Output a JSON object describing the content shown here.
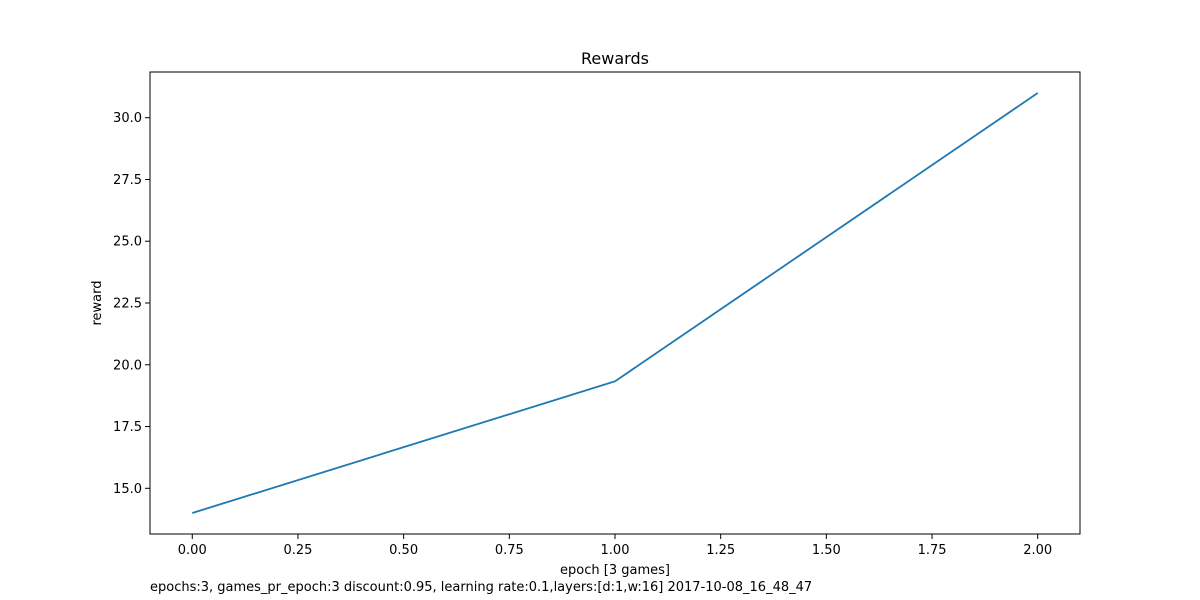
{
  "chart_data": {
    "type": "line",
    "title": "Rewards",
    "xlabel": "epoch [3 games]",
    "ylabel": "reward",
    "x": [
      0,
      1,
      2
    ],
    "series": [
      {
        "values": [
          14.0,
          19.33,
          31.0
        ],
        "color": "#1f77b4"
      }
    ],
    "xlim": [
      -0.1,
      2.1
    ],
    "ylim": [
      13.15,
      31.85
    ],
    "xticks": [
      0.0,
      0.25,
      0.5,
      0.75,
      1.0,
      1.25,
      1.5,
      1.75,
      2.0
    ],
    "xtick_labels": [
      "0.00",
      "0.25",
      "0.50",
      "0.75",
      "1.00",
      "1.25",
      "1.50",
      "1.75",
      "2.00"
    ],
    "yticks": [
      15.0,
      17.5,
      20.0,
      22.5,
      25.0,
      27.5,
      30.0
    ],
    "ytick_labels": [
      "15.0",
      "17.5",
      "20.0",
      "22.5",
      "25.0",
      "27.5",
      "30.0"
    ],
    "grid": false,
    "legend": "none"
  },
  "caption": "epochs:3, games_pr_epoch:3 discount:0.95, learning rate:0.1,layers:[d:1,w:16] 2017-10-08_16_48_47"
}
